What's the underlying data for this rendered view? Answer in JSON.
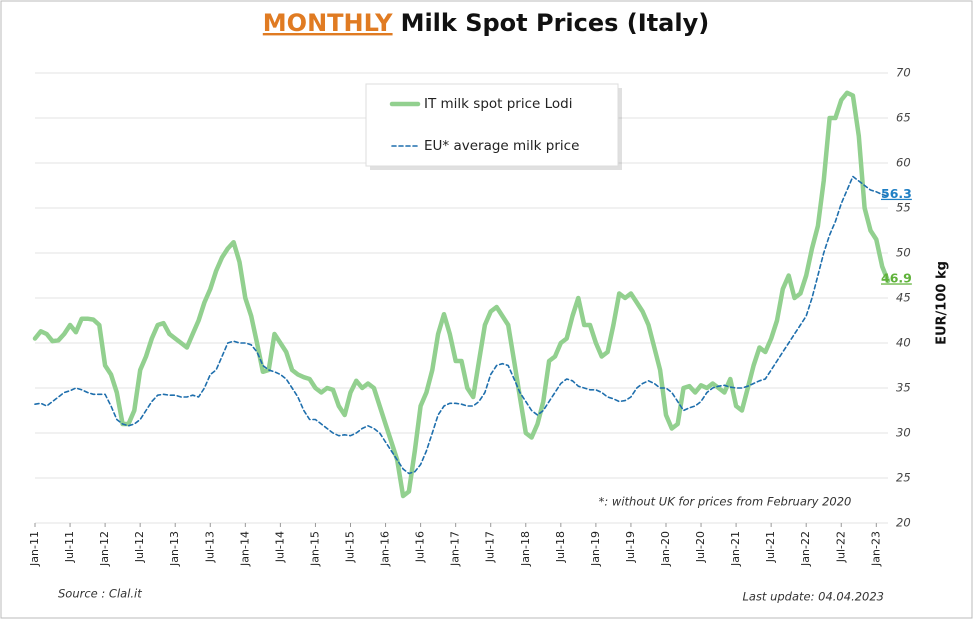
{
  "chart_data": {
    "type": "line",
    "title_highlight": "MONTHLY",
    "title": "Milk Spot Prices (Italy)",
    "y_axis_label": "EUR/100 kg",
    "footnote": "*: without UK for prices from February 2020",
    "source": "Source : Clal.it",
    "last_update": "Last update: 04.04.2023",
    "ylim": [
      20,
      70
    ],
    "yticks": [
      20,
      25,
      30,
      35,
      40,
      45,
      50,
      55,
      60,
      65,
      70
    ],
    "grid": true,
    "categories": [
      "Jan-11",
      null,
      null,
      null,
      null,
      null,
      "Jul-11",
      null,
      null,
      null,
      null,
      null,
      "Jan-12",
      null,
      null,
      null,
      null,
      null,
      "Jul-12",
      null,
      null,
      null,
      null,
      null,
      "Jan-13",
      null,
      null,
      null,
      null,
      null,
      "Jul-13",
      null,
      null,
      null,
      null,
      null,
      "Jan-14",
      null,
      null,
      null,
      null,
      null,
      "Jul-14",
      null,
      null,
      null,
      null,
      null,
      "Jan-15",
      null,
      null,
      null,
      null,
      null,
      "Jul-15",
      null,
      null,
      null,
      null,
      null,
      "Jan-16",
      null,
      null,
      null,
      null,
      null,
      "Jul-16",
      null,
      null,
      null,
      null,
      null,
      "Jan-17",
      null,
      null,
      null,
      null,
      null,
      "Jul-17",
      null,
      null,
      null,
      null,
      null,
      "Jan-18",
      null,
      null,
      null,
      null,
      null,
      "Jul-18",
      null,
      null,
      null,
      null,
      null,
      "Jan-19",
      null,
      null,
      null,
      null,
      null,
      "Jul-19",
      null,
      null,
      null,
      null,
      null,
      "Jan-20",
      null,
      null,
      null,
      null,
      null,
      "Jul-20",
      null,
      null,
      null,
      null,
      null,
      "Jan-21",
      null,
      null,
      null,
      null,
      null,
      "Jul-21",
      null,
      null,
      null,
      null,
      null,
      "Jan-22",
      null,
      null,
      null,
      null,
      null,
      "Jul-22",
      null,
      null,
      null,
      null,
      null,
      "Jan-23",
      null,
      null
    ],
    "series": [
      {
        "name": "IT milk spot price Lodi",
        "color": "#92d08f",
        "style": "solid",
        "values": [
          40.5,
          41.3,
          41.0,
          40.2,
          40.3,
          41.0,
          42.0,
          41.2,
          42.7,
          42.7,
          42.6,
          42.0,
          37.5,
          36.5,
          34.5,
          31.0,
          31.0,
          32.5,
          37.0,
          38.5,
          40.5,
          42.0,
          42.2,
          41.0,
          40.5,
          40.0,
          39.5,
          41.0,
          42.5,
          44.5,
          46.0,
          48.0,
          49.5,
          50.5,
          51.2,
          49.0,
          45.0,
          43.0,
          40.0,
          36.8,
          37.0,
          41.0,
          40.0,
          39.0,
          37.0,
          36.5,
          36.2,
          36.0,
          35.0,
          34.5,
          35.0,
          34.8,
          33.0,
          32.0,
          34.5,
          35.8,
          35.0,
          35.5,
          35.0,
          33.0,
          31.0,
          29.0,
          27.0,
          23.0,
          23.5,
          28.0,
          33.0,
          34.5,
          37.0,
          41.0,
          43.2,
          41.0,
          38.0,
          38.0,
          35.0,
          34.0,
          38.0,
          42.0,
          43.5,
          44.0,
          43.0,
          42.0,
          38.0,
          34.0,
          30.0,
          29.5,
          31.0,
          33.5,
          38.0,
          38.5,
          40.0,
          40.5,
          43.0,
          45.0,
          42.0,
          42.0,
          40.0,
          38.5,
          39.0,
          42.0,
          45.5,
          45.0,
          45.5,
          44.5,
          43.5,
          42.0,
          39.5,
          37.0,
          32.0,
          30.5,
          31.0,
          35.0,
          35.2,
          34.5,
          35.3,
          35.0,
          35.5,
          35.0,
          34.5,
          36.0,
          33.0,
          32.5,
          35.0,
          37.5,
          39.5,
          39.0,
          40.5,
          42.5,
          46.0,
          47.5,
          45.0,
          45.5,
          47.5,
          50.5,
          53.0,
          58.0,
          65.0,
          65.0,
          67.0,
          67.8,
          67.5,
          63.0,
          55.0,
          52.5,
          51.5,
          48.5,
          46.9
        ]
      },
      {
        "name": "EU* average milk price",
        "color": "#1f6fad",
        "style": "dashed",
        "values": [
          33.2,
          33.3,
          33.0,
          33.5,
          34.0,
          34.5,
          34.7,
          35.0,
          34.8,
          34.5,
          34.3,
          34.3,
          34.3,
          33.0,
          31.5,
          31.0,
          30.8,
          31.0,
          31.5,
          32.5,
          33.5,
          34.2,
          34.3,
          34.2,
          34.2,
          34.0,
          34.0,
          34.2,
          34.0,
          35.0,
          36.5,
          37.0,
          38.5,
          40.0,
          40.2,
          40.0,
          40.0,
          39.8,
          39.0,
          37.5,
          37.0,
          36.8,
          36.5,
          36.0,
          35.0,
          34.0,
          32.5,
          31.5,
          31.5,
          31.0,
          30.5,
          30.0,
          29.7,
          29.8,
          29.7,
          30.0,
          30.5,
          30.8,
          30.5,
          30.0,
          29.0,
          28.0,
          27.0,
          26.0,
          25.5,
          25.7,
          26.5,
          28.0,
          30.0,
          32.0,
          33.0,
          33.3,
          33.3,
          33.2,
          33.0,
          33.0,
          33.5,
          34.5,
          36.5,
          37.5,
          37.7,
          37.5,
          36.0,
          34.5,
          33.5,
          32.5,
          32.0,
          32.5,
          33.5,
          34.5,
          35.5,
          36.0,
          35.8,
          35.2,
          35.0,
          34.8,
          34.8,
          34.5,
          34.0,
          33.8,
          33.5,
          33.6,
          34.0,
          35.0,
          35.5,
          35.8,
          35.5,
          35.0,
          35.0,
          34.5,
          33.5,
          32.5,
          32.8,
          33.0,
          33.5,
          34.5,
          35.0,
          35.2,
          35.3,
          35.1,
          35.0,
          35.0,
          35.2,
          35.5,
          35.8,
          36.0,
          37.0,
          38.0,
          39.0,
          40.0,
          41.0,
          42.0,
          43.0,
          45.0,
          47.5,
          50.0,
          52.0,
          53.5,
          55.5,
          57.0,
          58.5,
          58.0,
          57.5,
          57.0,
          56.8,
          56.5,
          56.3
        ]
      }
    ]
  }
}
